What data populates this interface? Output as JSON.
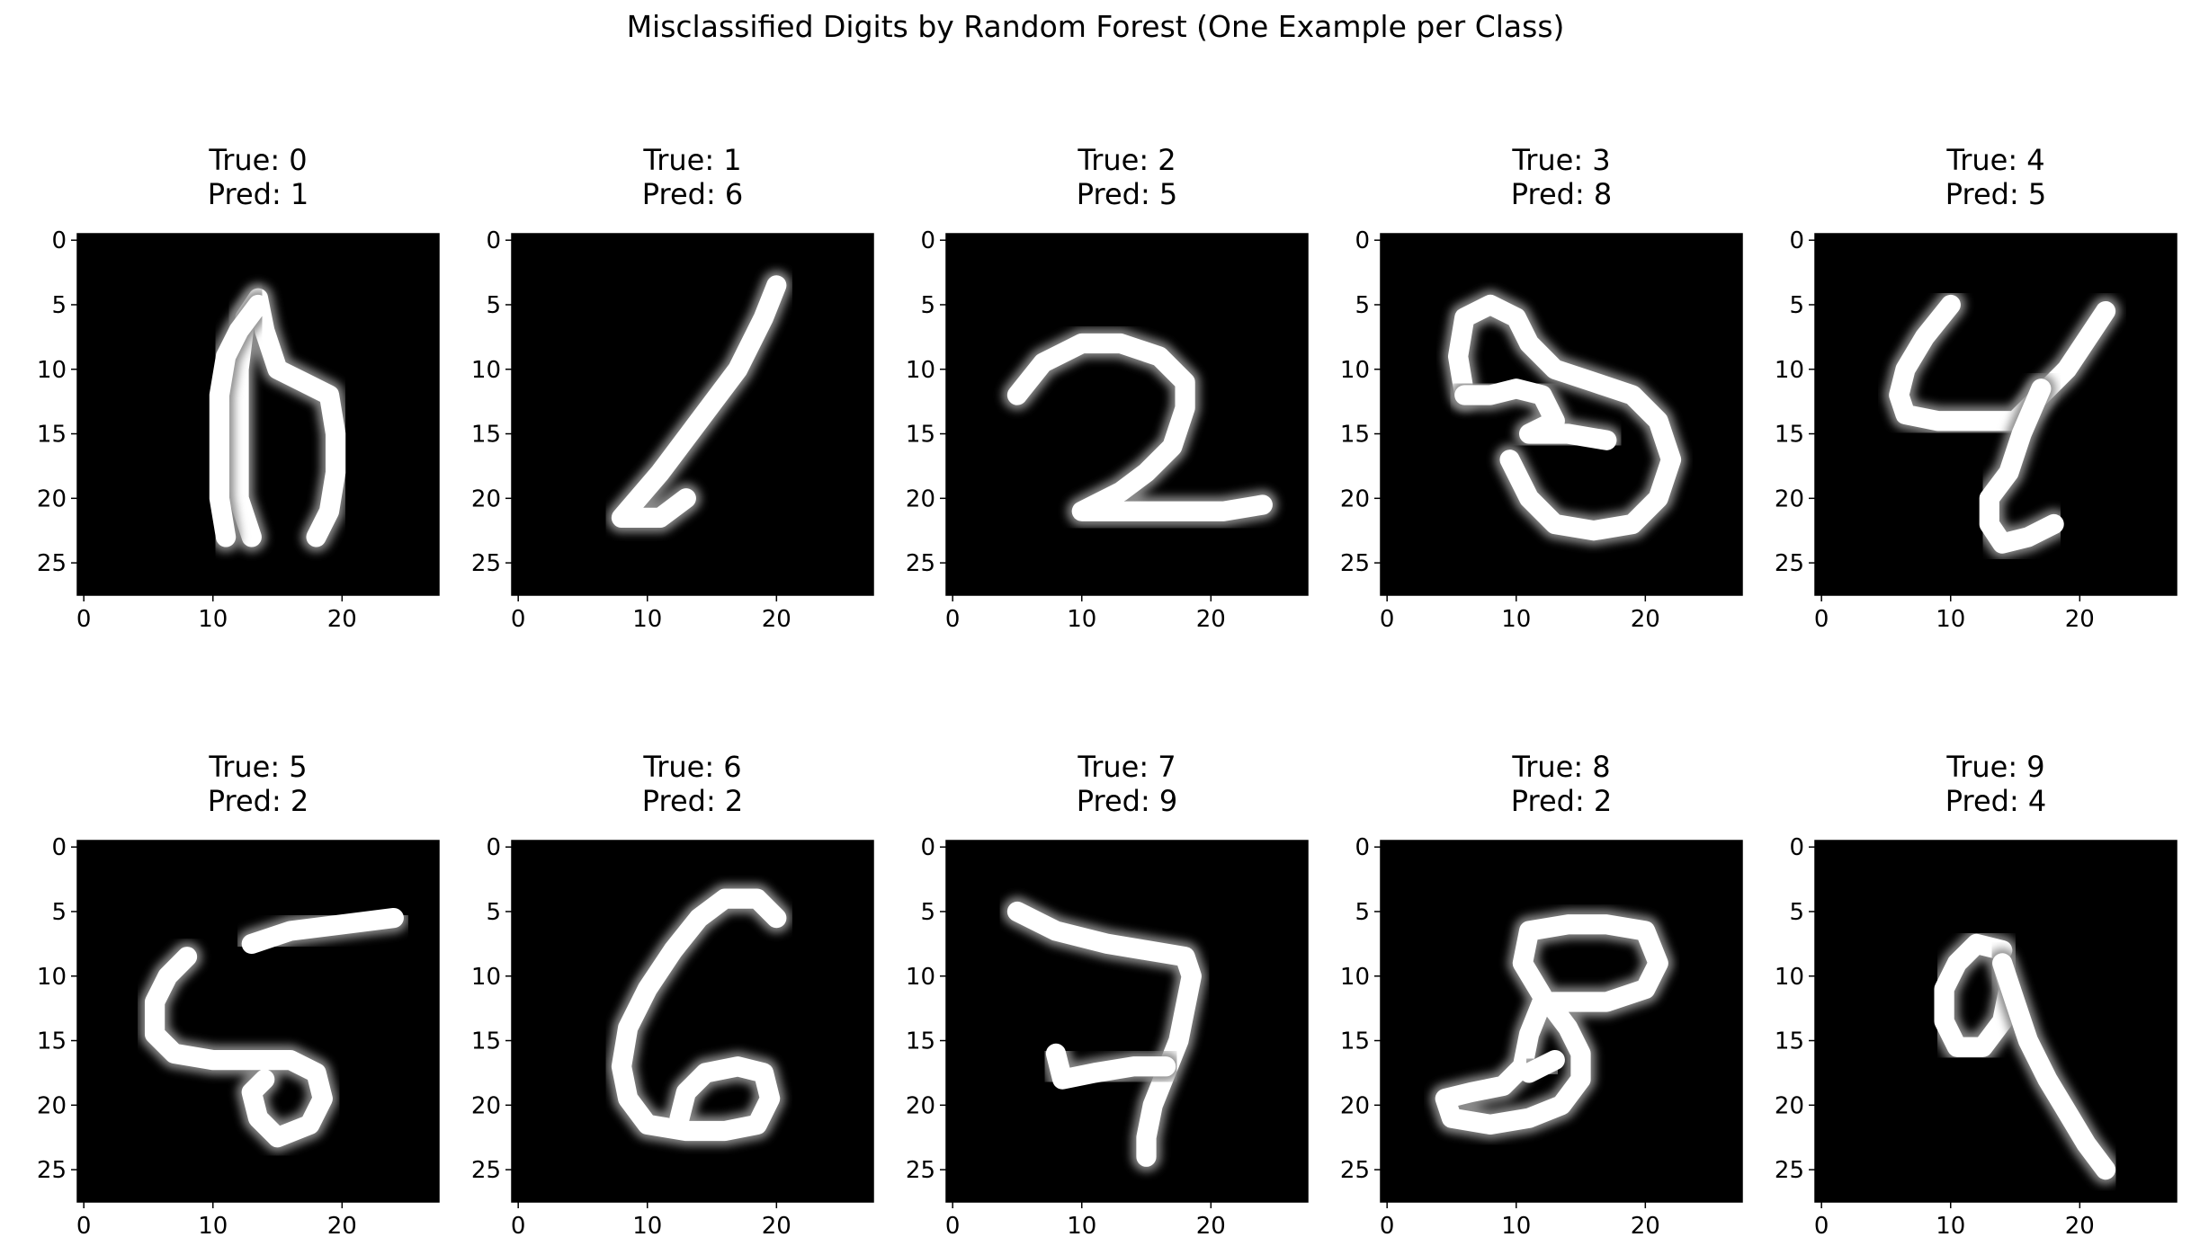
{
  "title": "Misclassified Digits by Random Forest (One Example per Class)",
  "chart_data": {
    "type": "heatmap",
    "colormap": "gray",
    "background": "#000000",
    "foreground": "#ffffff",
    "grid": false,
    "layout": "2 rows x 5 columns",
    "xlim": [
      -0.5,
      27.5
    ],
    "ylim": [
      27.5,
      -0.5
    ],
    "x_ticks": [
      "0",
      "10",
      "20"
    ],
    "y_ticks": [
      "0",
      "5",
      "10",
      "15",
      "20",
      "25"
    ],
    "panels": [
      {
        "title": "True: 0\nPred: 1",
        "true_label": "0",
        "pred_label": "1",
        "strokes": [
          [
            [
              13,
              23
            ],
            [
              12,
              20
            ],
            [
              12,
              15
            ],
            [
              12,
              10
            ],
            [
              12.5,
              6
            ],
            [
              13.5,
              4.5
            ],
            [
              14,
              7
            ],
            [
              15,
              10
            ],
            [
              17,
              11
            ],
            [
              19,
              12
            ],
            [
              19.5,
              15
            ],
            [
              19.5,
              18
            ],
            [
              19,
              21
            ],
            [
              18,
              23
            ]
          ],
          [
            [
              13.5,
              5
            ],
            [
              12,
              7
            ],
            [
              11,
              9
            ],
            [
              10.5,
              12
            ],
            [
              10.5,
              16
            ],
            [
              10.5,
              20
            ],
            [
              11,
              23
            ]
          ]
        ]
      },
      {
        "title": "True: 1\nPred: 6",
        "true_label": "1",
        "pred_label": "6",
        "strokes": [
          [
            [
              20,
              3.5
            ],
            [
              19,
              6
            ],
            [
              17,
              10
            ],
            [
              14,
              14
            ],
            [
              11,
              18
            ],
            [
              8,
              21.5
            ],
            [
              11,
              21.5
            ],
            [
              13,
              20
            ]
          ]
        ]
      },
      {
        "title": "True: 2\nPred: 5",
        "true_label": "2",
        "pred_label": "5",
        "strokes": [
          [
            [
              5,
              12
            ],
            [
              7,
              9.5
            ],
            [
              10,
              8
            ],
            [
              13,
              8
            ],
            [
              16,
              9
            ],
            [
              18,
              11
            ],
            [
              18,
              13
            ],
            [
              17,
              16
            ],
            [
              15,
              18
            ],
            [
              13,
              19.5
            ],
            [
              10,
              21
            ],
            [
              14,
              21
            ],
            [
              18,
              21
            ],
            [
              21,
              21
            ],
            [
              24,
              20.5
            ]
          ]
        ]
      },
      {
        "title": "True: 3\nPred: 8",
        "true_label": "3",
        "pred_label": "8",
        "strokes": [
          [
            [
              6,
              12
            ],
            [
              5.5,
              9
            ],
            [
              6,
              6
            ],
            [
              8,
              5
            ],
            [
              10,
              6
            ],
            [
              11,
              8
            ],
            [
              13,
              10
            ],
            [
              16,
              11
            ],
            [
              19,
              12
            ],
            [
              21,
              14
            ],
            [
              22,
              17
            ],
            [
              21,
              20
            ],
            [
              19,
              22
            ],
            [
              16,
              22.5
            ],
            [
              13,
              22
            ],
            [
              11,
              20
            ],
            [
              9.5,
              17
            ]
          ],
          [
            [
              6,
              12
            ],
            [
              8,
              12
            ],
            [
              10,
              11.5
            ],
            [
              12,
              12
            ],
            [
              13,
              14
            ],
            [
              11,
              15
            ],
            [
              14,
              15
            ],
            [
              17,
              15.5
            ]
          ]
        ]
      },
      {
        "title": "True: 4\nPred: 5",
        "true_label": "4",
        "pred_label": "5",
        "strokes": [
          [
            [
              10,
              5
            ],
            [
              8,
              7.5
            ],
            [
              6.5,
              10
            ],
            [
              6,
              12
            ],
            [
              6.5,
              13.5
            ],
            [
              9,
              14
            ],
            [
              12,
              14
            ],
            [
              15,
              14
            ],
            [
              17,
              12
            ],
            [
              19,
              10
            ],
            [
              21,
              7
            ],
            [
              22,
              5.5
            ]
          ],
          [
            [
              17,
              11.5
            ],
            [
              15.5,
              15
            ],
            [
              14.5,
              18
            ],
            [
              13,
              20
            ],
            [
              13,
              22
            ],
            [
              14,
              23.5
            ],
            [
              16,
              23
            ],
            [
              18,
              22
            ]
          ]
        ]
      },
      {
        "title": "True: 5\nPred: 2",
        "true_label": "5",
        "pred_label": "2",
        "strokes": [
          [
            [
              13,
              7.5
            ],
            [
              16,
              6.5
            ],
            [
              20,
              6
            ],
            [
              24,
              5.5
            ]
          ],
          [
            [
              8,
              8.5
            ],
            [
              6.5,
              10
            ],
            [
              5.5,
              12
            ],
            [
              5.5,
              14.5
            ],
            [
              7,
              16
            ],
            [
              10,
              16.5
            ],
            [
              13,
              16.5
            ],
            [
              16,
              16.5
            ],
            [
              18,
              17.5
            ],
            [
              18.5,
              19.5
            ],
            [
              17.5,
              21.5
            ],
            [
              15,
              22.5
            ],
            [
              13.5,
              21
            ],
            [
              13,
              19
            ],
            [
              14,
              18
            ]
          ]
        ]
      },
      {
        "title": "True: 6\nPred: 2",
        "true_label": "6",
        "pred_label": "2",
        "strokes": [
          [
            [
              20,
              5.5
            ],
            [
              18.5,
              4
            ],
            [
              16,
              4
            ],
            [
              14,
              5.5
            ],
            [
              12,
              8
            ],
            [
              10,
              11
            ],
            [
              8.5,
              14
            ],
            [
              8,
              17
            ],
            [
              8.5,
              19.5
            ],
            [
              10,
              21.5
            ],
            [
              13,
              22
            ],
            [
              16,
              22
            ],
            [
              18.5,
              21.5
            ],
            [
              19.5,
              19.5
            ],
            [
              19,
              17.5
            ],
            [
              17,
              17
            ],
            [
              14.5,
              17.5
            ],
            [
              13,
              19
            ],
            [
              12.5,
              21
            ]
          ]
        ]
      },
      {
        "title": "True: 7\nPred: 9",
        "true_label": "7",
        "pred_label": "9",
        "strokes": [
          [
            [
              5,
              5
            ],
            [
              8,
              6.5
            ],
            [
              12,
              7.5
            ],
            [
              15,
              8
            ],
            [
              18,
              8.5
            ],
            [
              18.5,
              10
            ],
            [
              18,
              12.5
            ],
            [
              17.5,
              15
            ],
            [
              16.5,
              17.5
            ],
            [
              15.5,
              20
            ],
            [
              15,
              22.5
            ],
            [
              15,
              24
            ]
          ],
          [
            [
              8,
              16
            ],
            [
              8.5,
              18
            ],
            [
              11,
              17.5
            ],
            [
              14,
              17
            ],
            [
              16.5,
              17
            ]
          ]
        ]
      },
      {
        "title": "True: 8\nPred: 2",
        "true_label": "8",
        "pred_label": "2",
        "strokes": [
          [
            [
              12,
              11.5
            ],
            [
              10.5,
              9
            ],
            [
              11,
              6.5
            ],
            [
              14,
              6
            ],
            [
              17,
              6
            ],
            [
              20,
              6.5
            ],
            [
              21,
              9
            ],
            [
              20,
              11
            ],
            [
              17,
              12
            ],
            [
              14,
              12
            ],
            [
              12,
              12
            ],
            [
              11,
              14.5
            ],
            [
              10.5,
              17
            ],
            [
              9,
              18.5
            ],
            [
              6.5,
              19
            ],
            [
              4.5,
              19.5
            ],
            [
              5,
              21
            ],
            [
              8,
              21.5
            ],
            [
              11,
              21
            ],
            [
              13.5,
              20
            ],
            [
              15,
              18
            ],
            [
              15,
              16
            ],
            [
              14,
              14
            ],
            [
              12.5,
              12
            ]
          ],
          [
            [
              13,
              16.5
            ],
            [
              11,
              17.5
            ]
          ]
        ]
      },
      {
        "title": "True: 9\nPred: 4",
        "true_label": "9",
        "pred_label": "4",
        "strokes": [
          [
            [
              14,
              8
            ],
            [
              12,
              7.5
            ],
            [
              10.5,
              9
            ],
            [
              9.5,
              11
            ],
            [
              9.5,
              13.5
            ],
            [
              10.5,
              15.5
            ],
            [
              12.5,
              15.5
            ],
            [
              14,
              13.5
            ],
            [
              14.5,
              11
            ],
            [
              14,
              9
            ]
          ],
          [
            [
              14,
              9
            ],
            [
              15,
              12
            ],
            [
              16,
              15
            ],
            [
              17.5,
              18
            ],
            [
              19,
              20.5
            ],
            [
              20.5,
              23
            ],
            [
              22,
              25
            ]
          ]
        ]
      }
    ]
  }
}
